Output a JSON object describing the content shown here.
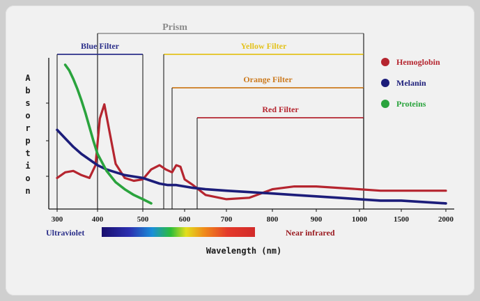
{
  "colors": {
    "hemoglobin": "#b5252f",
    "melanin": "#1c1d7a",
    "proteins": "#2aa33d",
    "prism": "#8a8a8a",
    "blue_filter": "#2b2f8a",
    "yellow_filter": "#e3c21d",
    "orange_filter": "#cc7a1e",
    "red_filter": "#b5252f",
    "ultraviolet": "#2b2f8a",
    "near_infrared": "#9b1c22"
  },
  "chart_data": {
    "type": "line",
    "title": "",
    "xlabel": "Wavelength (nm)",
    "ylabel": "Absorption",
    "ylabel_letters": [
      "A",
      "b",
      "s",
      "o",
      "r",
      "p",
      "t",
      "i",
      "o",
      "n"
    ],
    "x_ticks": [
      300,
      400,
      500,
      600,
      700,
      800,
      900,
      1000,
      1500,
      2000
    ],
    "grid": false,
    "legend_position": "right",
    "series": [
      {
        "name": "Hemoglobin",
        "color_key": "hemoglobin",
        "points": [
          [
            300,
            0.2
          ],
          [
            320,
            0.24
          ],
          [
            340,
            0.25
          ],
          [
            360,
            0.22
          ],
          [
            380,
            0.2
          ],
          [
            395,
            0.29
          ],
          [
            405,
            0.62
          ],
          [
            415,
            0.72
          ],
          [
            425,
            0.55
          ],
          [
            440,
            0.3
          ],
          [
            460,
            0.2
          ],
          [
            480,
            0.18
          ],
          [
            500,
            0.19
          ],
          [
            520,
            0.26
          ],
          [
            540,
            0.29
          ],
          [
            555,
            0.26
          ],
          [
            570,
            0.24
          ],
          [
            580,
            0.29
          ],
          [
            590,
            0.28
          ],
          [
            600,
            0.19
          ],
          [
            620,
            0.15
          ],
          [
            650,
            0.08
          ],
          [
            700,
            0.05
          ],
          [
            750,
            0.06
          ],
          [
            800,
            0.12
          ],
          [
            850,
            0.14
          ],
          [
            900,
            0.14
          ],
          [
            950,
            0.13
          ],
          [
            1000,
            0.12
          ],
          [
            1250,
            0.11
          ],
          [
            1500,
            0.11
          ],
          [
            1750,
            0.11
          ],
          [
            2000,
            0.11
          ]
        ]
      },
      {
        "name": "Melanin",
        "color_key": "melanin",
        "points": [
          [
            300,
            0.54
          ],
          [
            320,
            0.48
          ],
          [
            340,
            0.42
          ],
          [
            360,
            0.37
          ],
          [
            380,
            0.33
          ],
          [
            400,
            0.29
          ],
          [
            420,
            0.26
          ],
          [
            440,
            0.24
          ],
          [
            460,
            0.22
          ],
          [
            480,
            0.21
          ],
          [
            500,
            0.2
          ],
          [
            520,
            0.18
          ],
          [
            540,
            0.16
          ],
          [
            560,
            0.15
          ],
          [
            580,
            0.15
          ],
          [
            600,
            0.14
          ],
          [
            620,
            0.13
          ],
          [
            650,
            0.12
          ],
          [
            700,
            0.11
          ],
          [
            750,
            0.1
          ],
          [
            800,
            0.09
          ],
          [
            850,
            0.08
          ],
          [
            900,
            0.07
          ],
          [
            950,
            0.06
          ],
          [
            1000,
            0.05
          ],
          [
            1250,
            0.04
          ],
          [
            1500,
            0.04
          ],
          [
            1750,
            0.03
          ],
          [
            2000,
            0.02
          ]
        ]
      },
      {
        "name": "Proteins",
        "color_key": "proteins",
        "points": [
          [
            320,
            1.0
          ],
          [
            330,
            0.96
          ],
          [
            340,
            0.9
          ],
          [
            350,
            0.83
          ],
          [
            360,
            0.75
          ],
          [
            370,
            0.66
          ],
          [
            380,
            0.56
          ],
          [
            390,
            0.46
          ],
          [
            400,
            0.37
          ],
          [
            420,
            0.25
          ],
          [
            440,
            0.17
          ],
          [
            460,
            0.12
          ],
          [
            480,
            0.08
          ],
          [
            500,
            0.05
          ],
          [
            520,
            0.02
          ]
        ]
      }
    ],
    "filters": [
      {
        "label": "Prism",
        "x": [
          400,
          1050
        ],
        "color_key": "prism",
        "label_pos": "top"
      },
      {
        "label": "Blue Filter",
        "x": [
          300,
          500
        ],
        "color_key": "blue_filter",
        "label_pos": "top"
      },
      {
        "label": "Yellow Filter",
        "x": [
          550,
          1050
        ],
        "color_key": "yellow_filter",
        "label_pos": "top"
      },
      {
        "label": "Orange Filter",
        "x": [
          570,
          1050
        ],
        "color_key": "orange_filter",
        "label_pos": "top"
      },
      {
        "label": "Red Filter",
        "x": [
          630,
          1050
        ],
        "color_key": "red_filter",
        "label_pos": "top"
      }
    ],
    "spectrum_labels": {
      "ultraviolet": "Ultraviolet",
      "near_infrared": "Near infrared"
    }
  }
}
